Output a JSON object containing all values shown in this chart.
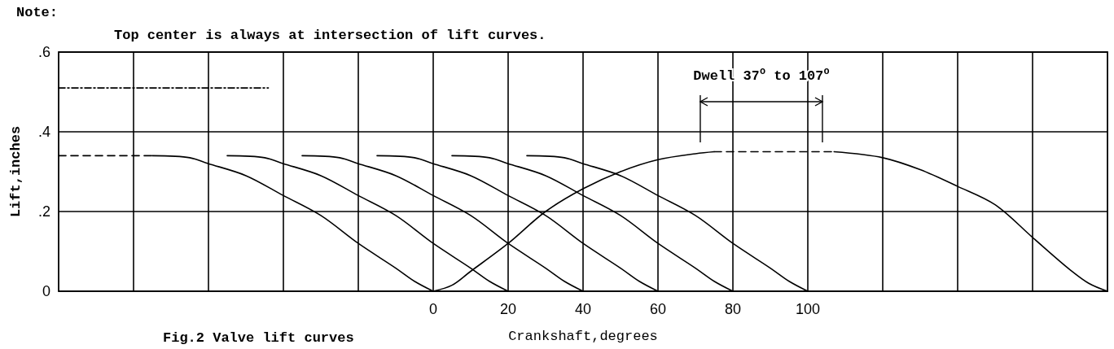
{
  "chart_data": {
    "type": "line",
    "title": "Fig.2  Valve lift curves",
    "xlabel": "Crankshaft,degrees",
    "ylabel": "Lift,inches",
    "annotations": [
      "Note:",
      "Top center is always at intersection of lift curves.",
      "Dwell 37$^{o}$ to 107$^{o}$"
    ],
    "xlim": [
      -100,
      180
    ],
    "ylim": [
      0,
      0.6
    ],
    "xticks": [
      {
        "value": -80,
        "label": null
      },
      {
        "value": -60,
        "label": null
      },
      {
        "value": -40,
        "label": null
      },
      {
        "value": -20,
        "label": null
      },
      0,
      20,
      40,
      60,
      80,
      100,
      {
        "value": 120,
        "label": null
      },
      {
        "value": 140,
        "label": null
      },
      {
        "value": 160,
        "label": null
      }
    ],
    "yticks": [
      0,
      {
        "value": 0.2,
        "label": ".2"
      },
      {
        "value": 0.4,
        "label": ".4"
      },
      {
        "value": 0.6,
        "label": ".6"
      }
    ],
    "grid": true,
    "marker": "none",
    "series": [
      {
        "color": "#000000",
        "line_style": "dashed",
        "x": [
          -100,
          -75
        ],
        "values": [
          0.34,
          0.34
        ]
      },
      {
        "color": "#000000",
        "line_style": "dotted",
        "x": [
          -100,
          -44
        ],
        "values": [
          0.51,
          0.51
        ]
      },
      {
        "color": "#000000",
        "x": [
          -75,
          -65,
          -60,
          -50,
          -40,
          -30,
          -20,
          -10,
          -5,
          0
        ],
        "values": [
          0.34,
          0.335,
          0.32,
          0.29,
          0.24,
          0.19,
          0.12,
          0.058,
          0.025,
          0
        ]
      },
      {
        "color": "#000000",
        "x": [
          -55,
          -45,
          -40,
          -30,
          -20,
          -10,
          0,
          10,
          15,
          20
        ],
        "values": [
          0.34,
          0.335,
          0.32,
          0.29,
          0.24,
          0.19,
          0.12,
          0.058,
          0.025,
          0
        ]
      },
      {
        "color": "#000000",
        "x": [
          -35,
          -25,
          -20,
          -10,
          0,
          10,
          20,
          30,
          35,
          40
        ],
        "values": [
          0.34,
          0.335,
          0.32,
          0.29,
          0.24,
          0.19,
          0.12,
          0.058,
          0.025,
          0
        ]
      },
      {
        "color": "#000000",
        "x": [
          -15,
          -5,
          0,
          10,
          20,
          30,
          40,
          50,
          55,
          60
        ],
        "values": [
          0.34,
          0.335,
          0.32,
          0.29,
          0.24,
          0.19,
          0.12,
          0.058,
          0.025,
          0
        ]
      },
      {
        "color": "#000000",
        "x": [
          5,
          15,
          20,
          30,
          40,
          50,
          60,
          70,
          75,
          80
        ],
        "values": [
          0.34,
          0.335,
          0.32,
          0.29,
          0.24,
          0.19,
          0.12,
          0.058,
          0.025,
          0
        ]
      },
      {
        "color": "#000000",
        "x": [
          25,
          35,
          40,
          50,
          60,
          70,
          80,
          90,
          95,
          100
        ],
        "values": [
          0.34,
          0.335,
          0.32,
          0.29,
          0.24,
          0.19,
          0.12,
          0.058,
          0.025,
          0
        ]
      },
      {
        "color": "#000000",
        "x": [
          0,
          5,
          10,
          20,
          30,
          40,
          50,
          60,
          70,
          75
        ],
        "values": [
          0,
          0.015,
          0.05,
          0.12,
          0.2,
          0.257,
          0.3,
          0.33,
          0.345,
          0.35
        ]
      },
      {
        "color": "#000000",
        "line_style": "dashed",
        "x": [
          75,
          107
        ],
        "values": [
          0.35,
          0.35
        ]
      },
      {
        "color": "#000000",
        "x": [
          107,
          120,
          130,
          140,
          150,
          160,
          170,
          175,
          180
        ],
        "values": [
          0.35,
          0.335,
          0.305,
          0.263,
          0.217,
          0.135,
          0.054,
          0.02,
          0
        ]
      }
    ]
  }
}
